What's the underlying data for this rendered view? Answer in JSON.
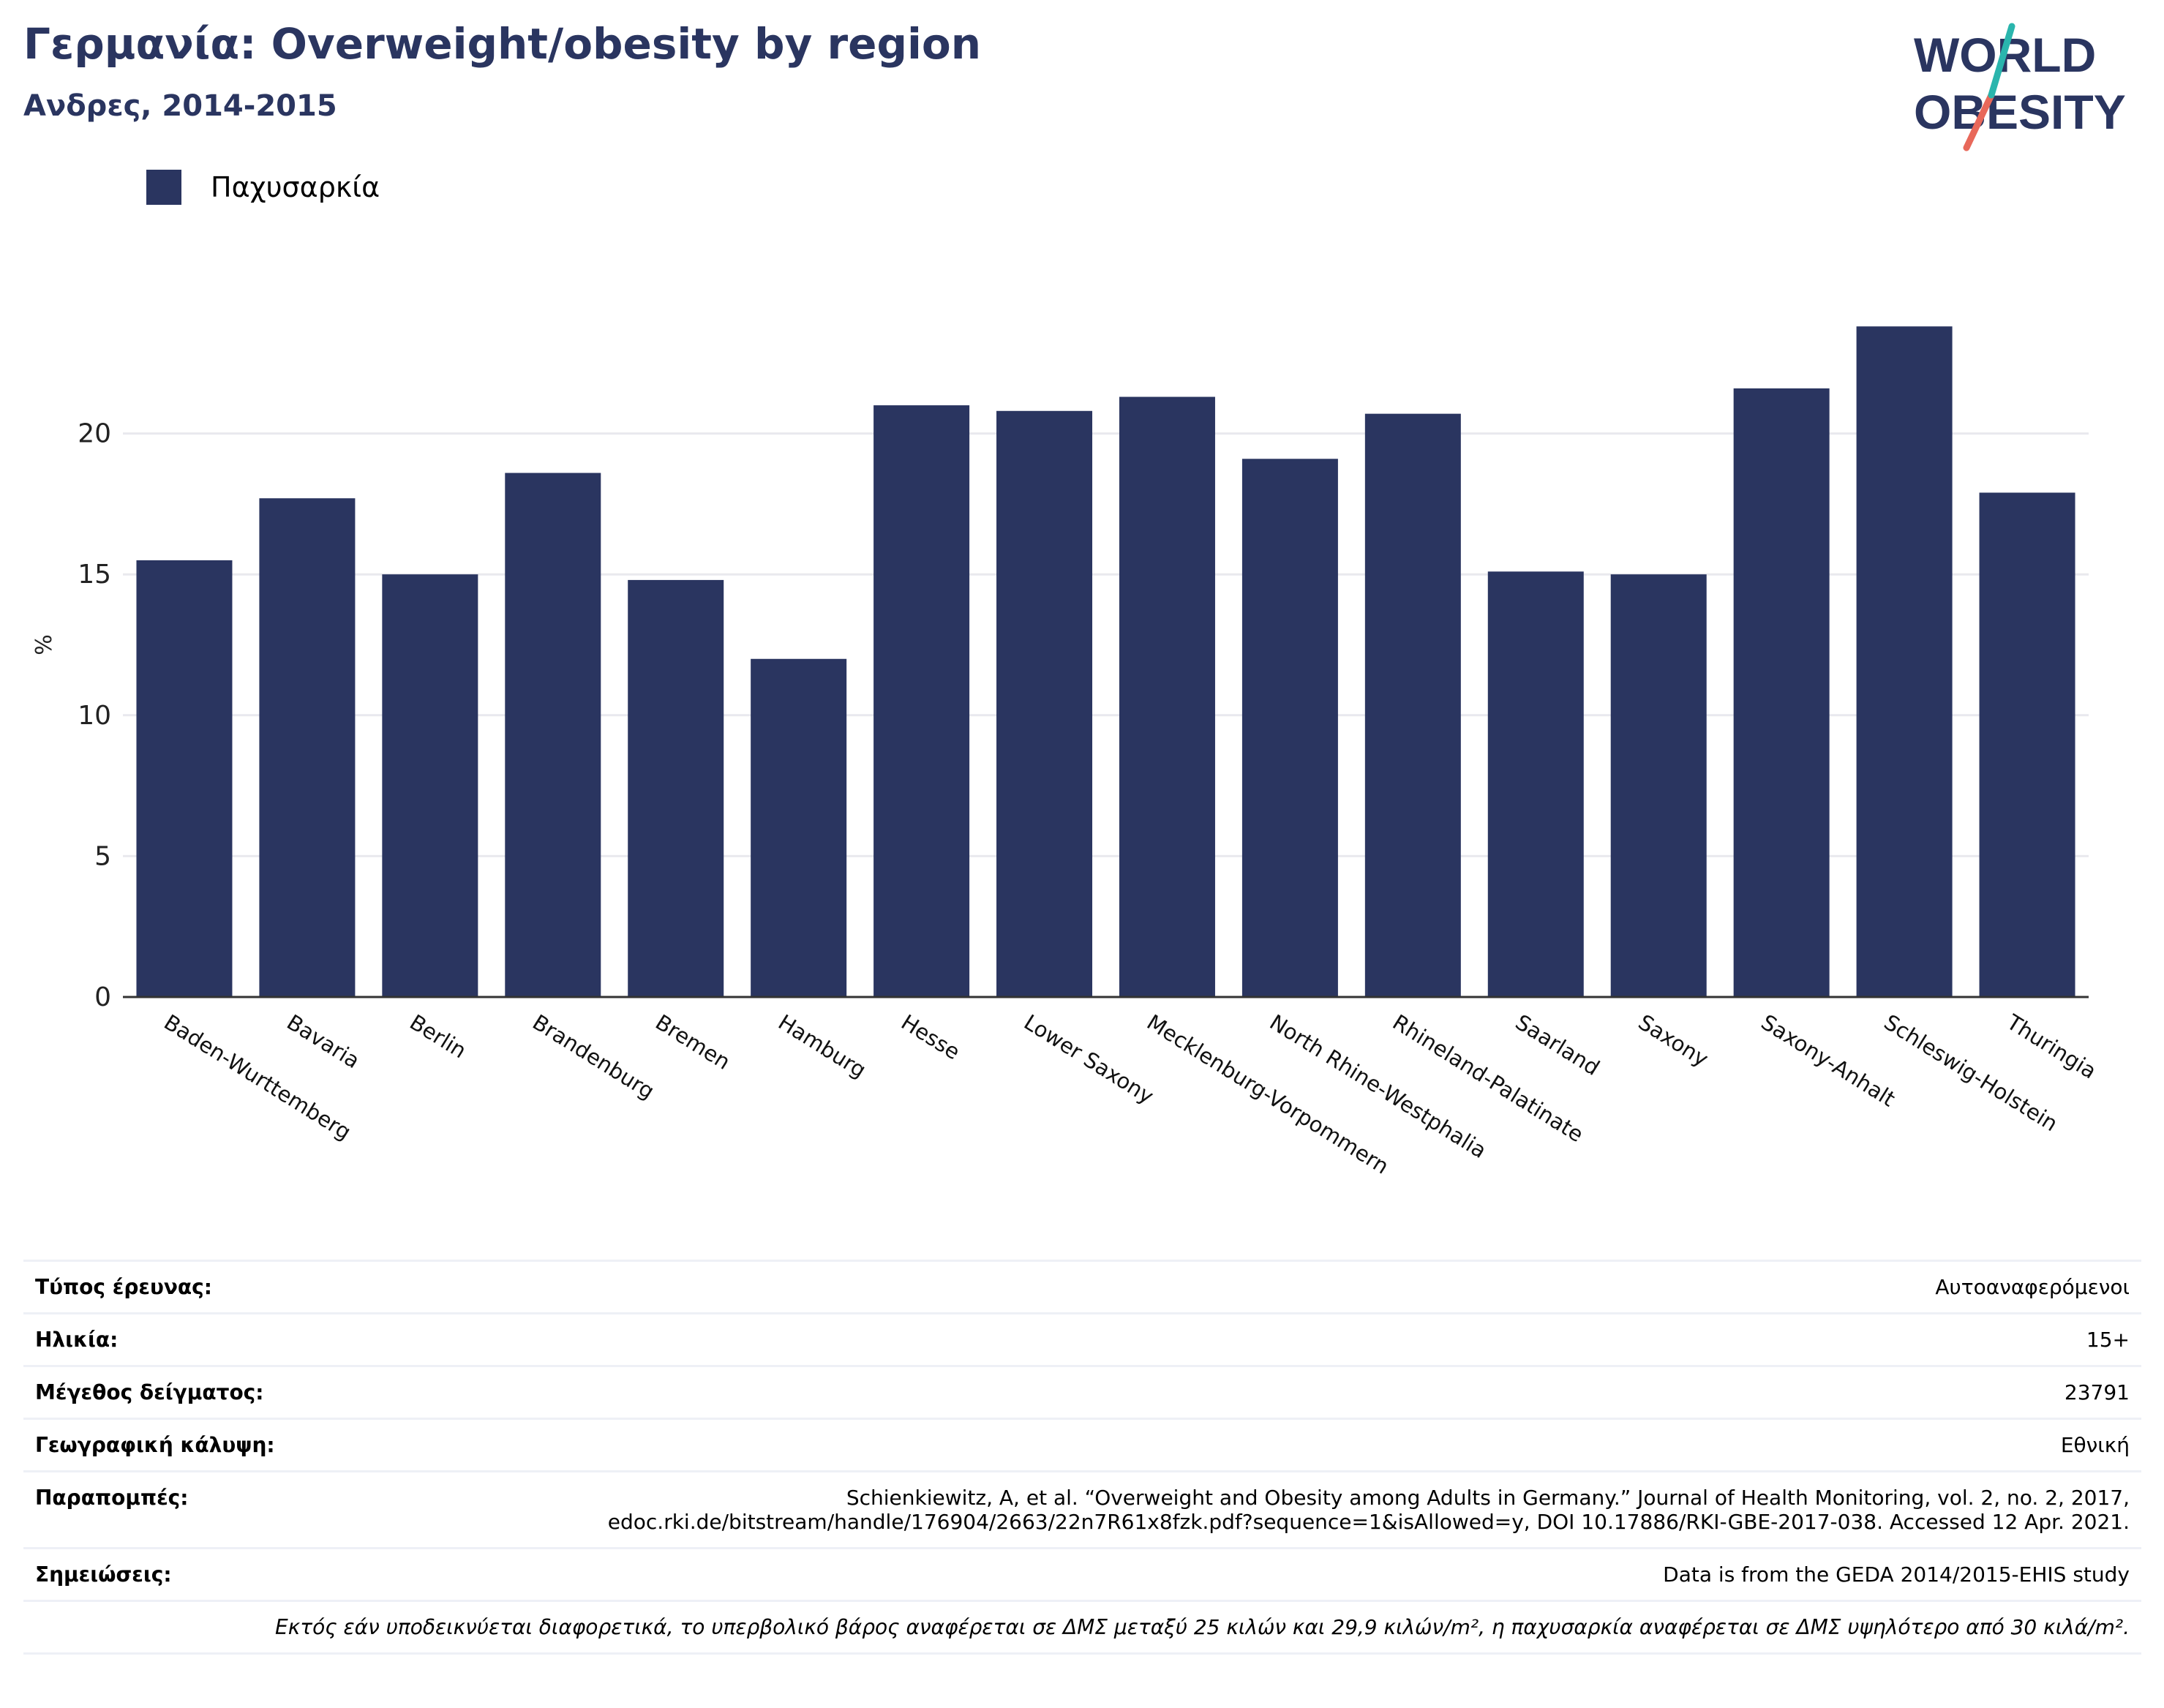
{
  "header": {
    "title": "Γερμανία: Overweight/obesity by region",
    "subtitle": "Ανδρες, 2014-2015"
  },
  "logo": {
    "line1": "WORLD",
    "line2": "OBESITY"
  },
  "colors": {
    "bar": "#2a3560",
    "accent_teal": "#2ab5ad",
    "accent_red": "#e8685a",
    "grid": "#e9e9ee"
  },
  "chart_data": {
    "type": "bar",
    "ylabel": "%",
    "ylim": [
      0,
      25
    ],
    "yticks": [
      0,
      5,
      10,
      15,
      20
    ],
    "grid": true,
    "legend_position": "top-left",
    "categories": [
      "Baden-Wurttemberg",
      "Bavaria",
      "Berlin",
      "Brandenburg",
      "Bremen",
      "Hamburg",
      "Hesse",
      "Lower Saxony",
      "Mecklenburg-Vorpommern",
      "North Rhine-Westphalia",
      "Rhineland-Palatinate",
      "Saarland",
      "Saxony",
      "Saxony-Anhalt",
      "Schleswig-Holstein",
      "Thuringia"
    ],
    "series": [
      {
        "name": "Παχυσαρκία",
        "values": [
          15.5,
          17.7,
          15.0,
          18.6,
          14.8,
          12.0,
          21.0,
          20.8,
          21.3,
          19.1,
          20.7,
          15.1,
          15.0,
          21.6,
          23.8,
          17.9
        ]
      }
    ]
  },
  "info": [
    {
      "key": "Τύπος έρευνας:",
      "value": "Αυτοαναφερόμενοι"
    },
    {
      "key": "Ηλικία:",
      "value": "15+"
    },
    {
      "key": "Μέγεθος δείγματος:",
      "value": "23791"
    },
    {
      "key": "Γεωγραφική κάλυψη:",
      "value": "Εθνική"
    },
    {
      "key": "Παραπομπές:",
      "value": "Schienkiewitz, A, et al. “Overweight and Obesity among Adults in Germany.” Journal of Health Monitoring, vol. 2, no. 2, 2017, edoc.rki.de/bitstream/handle/176904/2663/22n7R61x8fzk.pdf?sequence=1&isAllowed=y, DOI 10.17886/RKI-GBE-2017-038. Accessed 12 Apr. 2021."
    },
    {
      "key": "Σημειώσεις:",
      "value": "Data is from the GEDA 2014/2015-EHIS study"
    }
  ],
  "footnote": "Εκτός εάν υποδεικνύεται διαφορετικά, το υπερβολικό βάρος αναφέρεται σε ΔΜΣ μεταξύ 25 κιλών και 29,9 κιλών/m², η παχυσαρκία αναφέρεται σε ΔΜΣ υψηλότερο από 30 κιλά/m²."
}
